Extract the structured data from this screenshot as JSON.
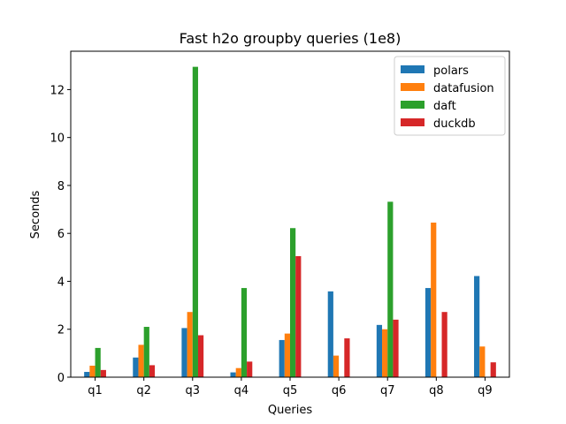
{
  "chart_data": {
    "type": "bar",
    "title": "Fast h2o groupby queries (1e8)",
    "xlabel": "Queries",
    "ylabel": "Seconds",
    "categories": [
      "q1",
      "q2",
      "q3",
      "q4",
      "q5",
      "q6",
      "q7",
      "q8",
      "q9"
    ],
    "ylim": [
      0,
      13.6
    ],
    "yticks": [
      0,
      2,
      4,
      6,
      8,
      10,
      12
    ],
    "legend_position": "top-right",
    "grid": false,
    "series": [
      {
        "name": "polars",
        "color": "#1f77b4",
        "values": [
          0.22,
          0.82,
          2.05,
          0.2,
          1.55,
          3.58,
          2.18,
          3.72,
          4.22
        ]
      },
      {
        "name": "datafusion",
        "color": "#ff7f0e",
        "values": [
          0.48,
          1.35,
          2.72,
          0.38,
          1.82,
          0.9,
          2.0,
          6.45,
          1.28
        ]
      },
      {
        "name": "daft",
        "color": "#2ca02c",
        "values": [
          1.22,
          2.1,
          12.95,
          3.72,
          6.22,
          0,
          7.32,
          0,
          0
        ]
      },
      {
        "name": "duckdb",
        "color": "#d62728",
        "values": [
          0.3,
          0.5,
          1.75,
          0.65,
          5.05,
          1.62,
          2.4,
          2.72,
          0.62
        ]
      }
    ]
  }
}
